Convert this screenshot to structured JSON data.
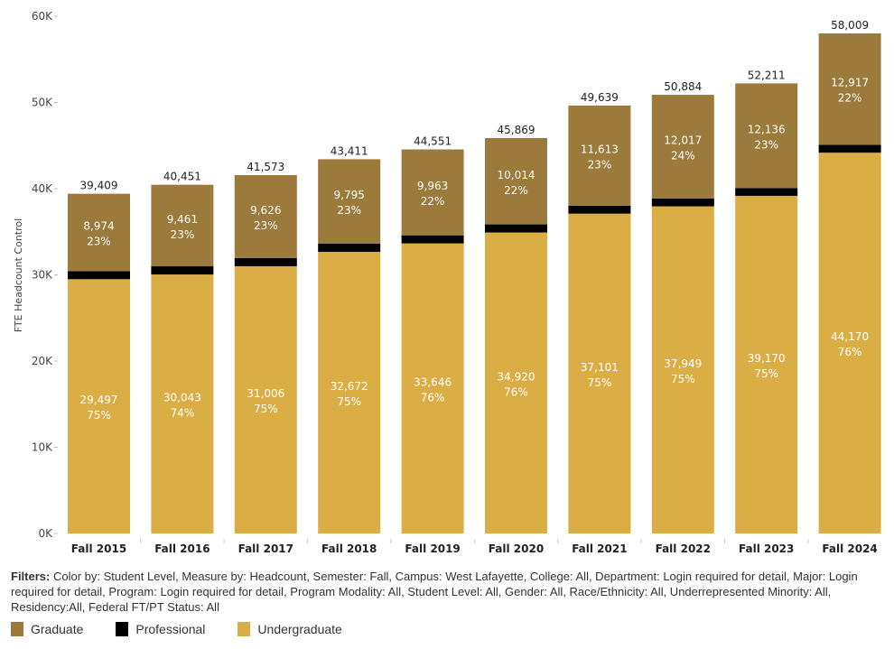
{
  "chart_data": {
    "type": "bar",
    "stacked": true,
    "categories": [
      "Fall 2015",
      "Fall 2016",
      "Fall 2017",
      "Fall 2018",
      "Fall 2019",
      "Fall 2020",
      "Fall 2021",
      "Fall 2022",
      "Fall 2023",
      "Fall 2024"
    ],
    "series": [
      {
        "name": "Undergraduate",
        "color": "#dbad45",
        "values": [
          29497,
          30043,
          31006,
          32672,
          33646,
          34920,
          37101,
          37949,
          39170,
          44170
        ],
        "pct_labels": [
          "75%",
          "74%",
          "75%",
          "75%",
          "76%",
          "76%",
          "75%",
          "75%",
          "75%",
          "76%"
        ],
        "value_labels": [
          "29,497",
          "30,043",
          "31,006",
          "32,672",
          "33,646",
          "34,920",
          "37,101",
          "37,949",
          "39,170",
          "44,170"
        ]
      },
      {
        "name": "Professional",
        "color": "#000000",
        "values": [
          938,
          947,
          941,
          944,
          942,
          935,
          925,
          918,
          905,
          922
        ]
      },
      {
        "name": "Graduate",
        "color": "#9c7a3c",
        "values": [
          8974,
          9461,
          9626,
          9795,
          9963,
          10014,
          11613,
          12017,
          12136,
          12917
        ],
        "pct_labels": [
          "23%",
          "23%",
          "23%",
          "23%",
          "22%",
          "22%",
          "23%",
          "24%",
          "23%",
          "22%"
        ],
        "value_labels": [
          "8,974",
          "9,461",
          "9,626",
          "9,795",
          "9,963",
          "10,014",
          "11,613",
          "12,017",
          "12,136",
          "12,917"
        ]
      }
    ],
    "totals": [
      39409,
      40451,
      41573,
      43411,
      44551,
      45869,
      49639,
      50884,
      52211,
      58009
    ],
    "total_labels": [
      "39,409",
      "40,451",
      "41,573",
      "43,411",
      "44,551",
      "45,869",
      "49,639",
      "50,884",
      "52,211",
      "58,009"
    ],
    "ylabel": "FTE Headcount Control",
    "ylim": [
      0,
      60000
    ],
    "yticks": [
      0,
      10000,
      20000,
      30000,
      40000,
      50000,
      60000
    ],
    "ytick_labels": [
      "0K",
      "10K",
      "20K",
      "30K",
      "40K",
      "50K",
      "60K"
    ],
    "grid": false,
    "legend": "bottom-left"
  },
  "filters": {
    "label": "Filters:",
    "text": " Color by: Student Level, Measure by: Headcount, Semester: Fall, Campus: West Lafayette, College: All, Department: Login required for detail, Major: Login required for detail, Program: Login required for detail, Program Modality: All,  Student Level: All, Gender: All, Race/Ethnicity: All, Underrepresented Minority: All, Residency:All, Federal FT/PT Status: All"
  },
  "legend": [
    {
      "label": "Graduate",
      "color": "#9c7a3c"
    },
    {
      "label": "Professional",
      "color": "#000000"
    },
    {
      "label": "Undergraduate",
      "color": "#dbad45"
    }
  ]
}
